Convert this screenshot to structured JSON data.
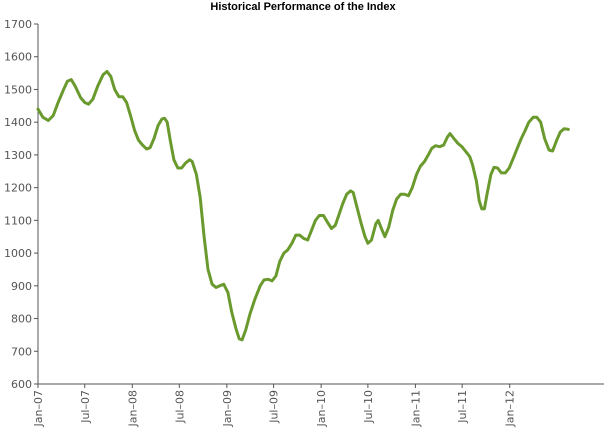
{
  "chart_data": {
    "type": "line",
    "title": "Historical Performance of the Index",
    "xlabel": "",
    "ylabel": "",
    "grid": false,
    "legend": "none",
    "ylim": [
      600,
      1700
    ],
    "xlim": [
      "2007-01-01",
      "2012-12-31"
    ],
    "y_ticks": [
      600,
      700,
      800,
      900,
      1000,
      1100,
      1200,
      1300,
      1400,
      1500,
      1600,
      1700
    ],
    "x_ticks": [
      {
        "label": "Jan–07",
        "date": "2007-01-01"
      },
      {
        "label": "Jul–07",
        "date": "2007-07-01"
      },
      {
        "label": "Jan–08",
        "date": "2008-01-01"
      },
      {
        "label": "Jul–08",
        "date": "2008-07-01"
      },
      {
        "label": "Jan–09",
        "date": "2009-01-01"
      },
      {
        "label": "Jul–09",
        "date": "2009-07-01"
      },
      {
        "label": "Jan–10",
        "date": "2010-01-01"
      },
      {
        "label": "Jul–10",
        "date": "2010-07-01"
      },
      {
        "label": "Jan–11",
        "date": "2011-01-01"
      },
      {
        "label": "Jul–11",
        "date": "2011-07-01"
      },
      {
        "label": "Jan–12",
        "date": "2012-01-01"
      }
    ],
    "series": [
      {
        "color": "#6a9a2e",
        "points": [
          [
            "2007-01-01",
            1440
          ],
          [
            "2007-01-20",
            1415
          ],
          [
            "2007-02-10",
            1405
          ],
          [
            "2007-03-01",
            1420
          ],
          [
            "2007-03-20",
            1460
          ],
          [
            "2007-04-10",
            1500
          ],
          [
            "2007-04-25",
            1525
          ],
          [
            "2007-05-10",
            1530
          ],
          [
            "2007-05-25",
            1510
          ],
          [
            "2007-06-15",
            1475
          ],
          [
            "2007-07-01",
            1460
          ],
          [
            "2007-07-15",
            1455
          ],
          [
            "2007-08-01",
            1470
          ],
          [
            "2007-08-20",
            1510
          ],
          [
            "2007-09-10",
            1545
          ],
          [
            "2007-09-25",
            1555
          ],
          [
            "2007-10-10",
            1540
          ],
          [
            "2007-10-25",
            1500
          ],
          [
            "2007-11-10",
            1478
          ],
          [
            "2007-11-25",
            1478
          ],
          [
            "2007-12-10",
            1460
          ],
          [
            "2007-12-25",
            1420
          ],
          [
            "2008-01-10",
            1375
          ],
          [
            "2008-01-25",
            1345
          ],
          [
            "2008-02-10",
            1330
          ],
          [
            "2008-02-25",
            1318
          ],
          [
            "2008-03-10",
            1322
          ],
          [
            "2008-03-25",
            1350
          ],
          [
            "2008-04-10",
            1390
          ],
          [
            "2008-04-25",
            1410
          ],
          [
            "2008-05-05",
            1412
          ],
          [
            "2008-05-15",
            1400
          ],
          [
            "2008-05-28",
            1340
          ],
          [
            "2008-06-10",
            1285
          ],
          [
            "2008-06-25",
            1260
          ],
          [
            "2008-07-10",
            1260
          ],
          [
            "2008-07-25",
            1275
          ],
          [
            "2008-08-10",
            1285
          ],
          [
            "2008-08-20",
            1280
          ],
          [
            "2008-09-05",
            1240
          ],
          [
            "2008-09-20",
            1170
          ],
          [
            "2008-10-05",
            1050
          ],
          [
            "2008-10-20",
            950
          ],
          [
            "2008-11-05",
            905
          ],
          [
            "2008-11-20",
            895
          ],
          [
            "2008-12-05",
            900
          ],
          [
            "2008-12-20",
            905
          ],
          [
            "2009-01-05",
            880
          ],
          [
            "2009-01-20",
            820
          ],
          [
            "2009-02-05",
            770
          ],
          [
            "2009-02-18",
            738
          ],
          [
            "2009-03-01",
            735
          ],
          [
            "2009-03-15",
            765
          ],
          [
            "2009-04-01",
            815
          ],
          [
            "2009-04-20",
            860
          ],
          [
            "2009-05-10",
            900
          ],
          [
            "2009-05-25",
            918
          ],
          [
            "2009-06-10",
            920
          ],
          [
            "2009-06-25",
            915
          ],
          [
            "2009-07-10",
            930
          ],
          [
            "2009-07-25",
            975
          ],
          [
            "2009-08-10",
            1000
          ],
          [
            "2009-08-25",
            1010
          ],
          [
            "2009-09-10",
            1030
          ],
          [
            "2009-09-25",
            1055
          ],
          [
            "2009-10-10",
            1055
          ],
          [
            "2009-10-25",
            1045
          ],
          [
            "2009-11-10",
            1040
          ],
          [
            "2009-11-25",
            1070
          ],
          [
            "2009-12-10",
            1100
          ],
          [
            "2009-12-25",
            1115
          ],
          [
            "2010-01-10",
            1115
          ],
          [
            "2010-01-25",
            1095
          ],
          [
            "2010-02-10",
            1075
          ],
          [
            "2010-02-25",
            1085
          ],
          [
            "2010-03-10",
            1115
          ],
          [
            "2010-03-25",
            1150
          ],
          [
            "2010-04-10",
            1180
          ],
          [
            "2010-04-25",
            1190
          ],
          [
            "2010-05-05",
            1185
          ],
          [
            "2010-05-20",
            1140
          ],
          [
            "2010-06-05",
            1090
          ],
          [
            "2010-06-20",
            1050
          ],
          [
            "2010-07-01",
            1030
          ],
          [
            "2010-07-15",
            1040
          ],
          [
            "2010-08-01",
            1090
          ],
          [
            "2010-08-10",
            1100
          ],
          [
            "2010-08-25",
            1070
          ],
          [
            "2010-09-05",
            1050
          ],
          [
            "2010-09-20",
            1080
          ],
          [
            "2010-10-05",
            1130
          ],
          [
            "2010-10-20",
            1165
          ],
          [
            "2010-11-05",
            1180
          ],
          [
            "2010-11-20",
            1180
          ],
          [
            "2010-12-05",
            1175
          ],
          [
            "2010-12-20",
            1200
          ],
          [
            "2011-01-05",
            1240
          ],
          [
            "2011-01-20",
            1265
          ],
          [
            "2011-02-05",
            1280
          ],
          [
            "2011-02-20",
            1300
          ],
          [
            "2011-03-05",
            1320
          ],
          [
            "2011-03-20",
            1328
          ],
          [
            "2011-04-05",
            1325
          ],
          [
            "2011-04-20",
            1330
          ],
          [
            "2011-05-05",
            1355
          ],
          [
            "2011-05-15",
            1365
          ],
          [
            "2011-05-30",
            1350
          ],
          [
            "2011-06-15",
            1335
          ],
          [
            "2011-06-30",
            1325
          ],
          [
            "2011-07-15",
            1310
          ],
          [
            "2011-07-30",
            1295
          ],
          [
            "2011-08-10",
            1270
          ],
          [
            "2011-08-25",
            1220
          ],
          [
            "2011-09-05",
            1160
          ],
          [
            "2011-09-15",
            1135
          ],
          [
            "2011-09-25",
            1135
          ],
          [
            "2011-10-05",
            1180
          ],
          [
            "2011-10-20",
            1240
          ],
          [
            "2011-11-01",
            1262
          ],
          [
            "2011-11-15",
            1260
          ],
          [
            "2011-11-30",
            1245
          ],
          [
            "2011-12-15",
            1245
          ],
          [
            "2011-12-30",
            1260
          ],
          [
            "2012-01-15",
            1290
          ],
          [
            "2012-01-30",
            1320
          ],
          [
            "2012-02-15",
            1350
          ],
          [
            "2012-03-01",
            1375
          ],
          [
            "2012-03-15",
            1400
          ],
          [
            "2012-04-01",
            1415
          ],
          [
            "2012-04-15",
            1415
          ],
          [
            "2012-04-30",
            1400
          ],
          [
            "2012-05-15",
            1350
          ],
          [
            "2012-06-01",
            1315
          ],
          [
            "2012-06-15",
            1312
          ],
          [
            "2012-07-01",
            1345
          ],
          [
            "2012-07-15",
            1370
          ],
          [
            "2012-07-30",
            1380
          ],
          [
            "2012-08-15",
            1378
          ]
        ]
      }
    ]
  }
}
